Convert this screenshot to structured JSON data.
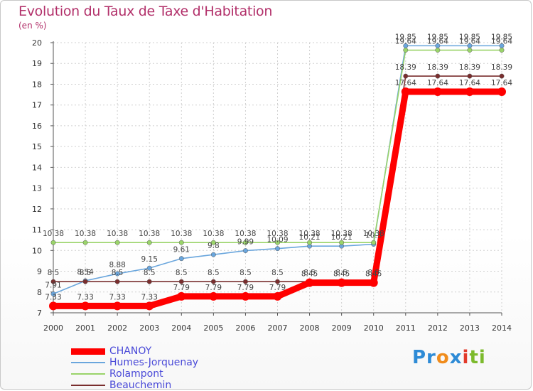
{
  "title": "Evolution du Taux de Taxe d'Habitation",
  "unit": "(en %)",
  "chart_data": {
    "type": "line",
    "title": "Evolution du Taux de Taxe d'Habitation",
    "ylabel": "(en %)",
    "xlabel": "",
    "x": [
      "2000",
      "2001",
      "2002",
      "2003",
      "2004",
      "2005",
      "2006",
      "2007",
      "2008",
      "2009",
      "2010",
      "2011",
      "2012",
      "2013",
      "2014"
    ],
    "ylim": [
      7,
      20
    ],
    "yticks": [
      "7",
      "8",
      "9",
      "10",
      "11",
      "12",
      "13",
      "14",
      "15",
      "16",
      "17",
      "18",
      "19",
      "20"
    ],
    "grid": true,
    "series": [
      {
        "name": "CHANOY",
        "color": "#ff0000",
        "values": [
          7.33,
          7.33,
          7.33,
          7.33,
          7.79,
          7.79,
          7.79,
          7.79,
          8.45,
          8.45,
          8.45,
          17.64,
          17.64,
          17.64,
          17.64
        ],
        "labels": [
          "7.33",
          "7.33",
          "7.33",
          "7.33",
          "7.79",
          "7.79",
          "7.79",
          "7.79",
          "8.45",
          "8.45",
          "8.45",
          "17.64",
          "17.64",
          "17.64",
          "17.64"
        ]
      },
      {
        "name": "Humes-Jorquenay",
        "color": "#6aa6dd",
        "values": [
          7.91,
          8.54,
          8.88,
          9.15,
          9.61,
          9.8,
          9.99,
          10.09,
          10.21,
          10.21,
          10.3,
          19.85,
          19.85,
          19.85,
          19.85
        ],
        "labels": [
          "7.91",
          "8.54",
          "8.88",
          "9.15",
          "9.61",
          "9.8",
          "9.99",
          "10.09",
          "10.21",
          "10.21",
          "10.3",
          "19.85",
          "19.85",
          "19.85",
          "19.85"
        ]
      },
      {
        "name": "Rolampont",
        "color": "#9ad46a",
        "values": [
          10.38,
          10.38,
          10.38,
          10.38,
          10.38,
          10.38,
          10.38,
          10.38,
          10.38,
          10.38,
          10.38,
          19.64,
          19.64,
          19.64,
          19.64
        ],
        "labels": [
          "10.38",
          "10.38",
          "10.38",
          "10.38",
          "10.38",
          "10.38",
          "10.38",
          "10.38",
          "10.38",
          "10.38",
          "10.38",
          "19.64",
          "19.64",
          "19.64",
          "19.64"
        ]
      },
      {
        "name": "Beauchemin",
        "color": "#7a2e2e",
        "values": [
          8.5,
          8.5,
          8.5,
          8.5,
          8.5,
          8.5,
          8.5,
          8.5,
          8.5,
          8.5,
          8.5,
          18.39,
          18.39,
          18.39,
          18.39
        ],
        "labels": [
          "8.5",
          "8.5",
          "8.5",
          "8.5",
          "8.5",
          "8.5",
          "8.5",
          "8.5",
          "8.5",
          "8.5",
          "8.5",
          "18.39",
          "18.39",
          "18.39",
          "18.39"
        ]
      }
    ],
    "legend_position": "bottom-left"
  },
  "legend": {
    "items": [
      {
        "label": "CHANOY",
        "color": "#ff0000"
      },
      {
        "label": "Humes-Jorquenay",
        "color": "#6aa6dd"
      },
      {
        "label": "Rolampont",
        "color": "#9ad46a"
      },
      {
        "label": "Beauchemin",
        "color": "#7a2e2e"
      }
    ]
  },
  "logo": {
    "p1": "Pr",
    "p2": "o",
    "p3": "x",
    "p4": "i",
    "p5": "ti"
  }
}
